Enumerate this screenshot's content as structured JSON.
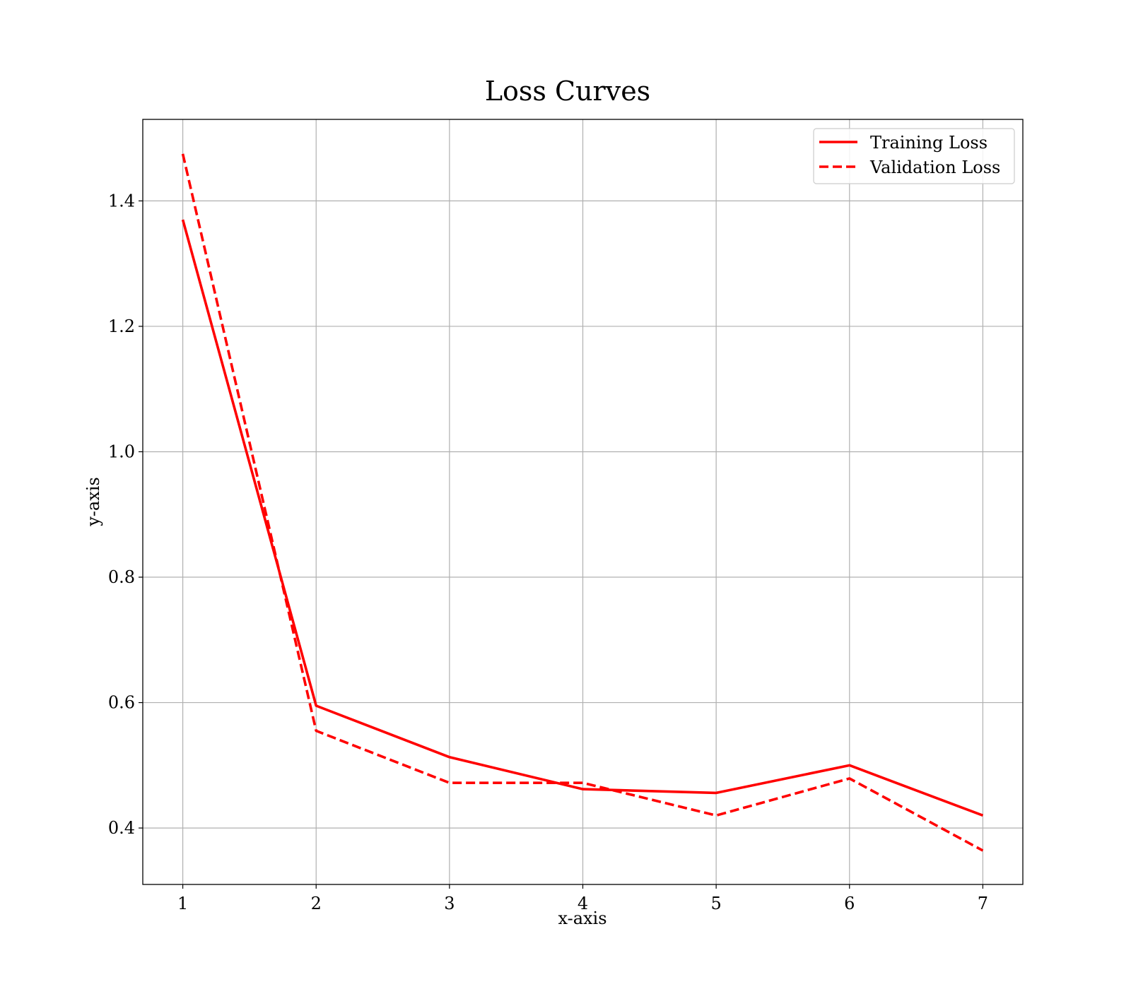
{
  "chart_data": {
    "type": "line",
    "title": "Loss Curves",
    "xlabel": "x-axis",
    "ylabel": "y-axis",
    "x": [
      1,
      2,
      3,
      4,
      5,
      6,
      7
    ],
    "xlim": [
      0.7,
      7.3
    ],
    "ylim": [
      0.31,
      1.53
    ],
    "x_ticks": [
      "1",
      "2",
      "3",
      "4",
      "5",
      "6",
      "7"
    ],
    "y_ticks": [
      "0.4",
      "0.6",
      "0.8",
      "1.0",
      "1.2",
      "1.4"
    ],
    "grid": true,
    "legend_position": "top-right",
    "series": [
      {
        "name": "Training Loss",
        "style": "solid",
        "color": "#ff0000",
        "values": [
          1.37,
          0.595,
          0.513,
          0.462,
          0.456,
          0.5,
          0.42
        ]
      },
      {
        "name": "Validation Loss",
        "style": "dashed",
        "color": "#ff0000",
        "values": [
          1.475,
          0.555,
          0.472,
          0.472,
          0.42,
          0.479,
          0.364
        ]
      }
    ]
  }
}
